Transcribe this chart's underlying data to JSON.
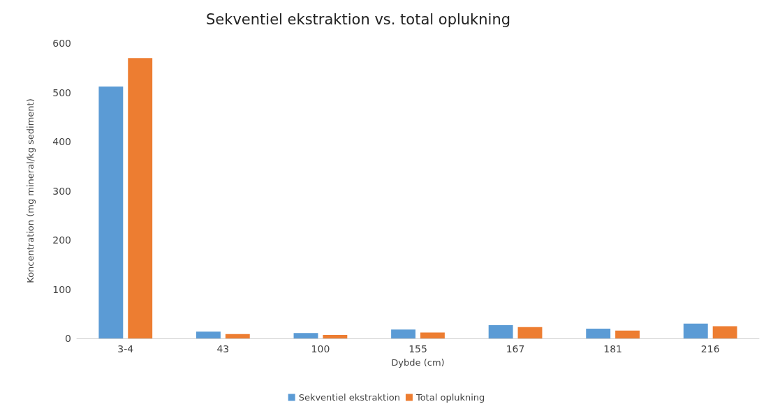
{
  "chart_data": {
    "type": "bar",
    "title": "Sekventiel ekstraktion vs. total oplukning",
    "xlabel": "Dybde (cm)",
    "ylabel": "Koncentration (mg mineral/kg sediment)",
    "categories": [
      "3-4",
      "43",
      "100",
      "155",
      "167",
      "181",
      "216"
    ],
    "series": [
      {
        "name": "Sekventiel ekstraktion",
        "color": "#5b9bd5",
        "values": [
          512,
          14,
          11,
          18,
          27,
          20,
          30
        ]
      },
      {
        "name": "Total oplukning",
        "color": "#ed7d31",
        "values": [
          570,
          9,
          7,
          12,
          23,
          16,
          25
        ]
      }
    ],
    "ylim": [
      0,
      600
    ],
    "yticks": [
      0,
      100,
      200,
      300,
      400,
      500,
      600
    ],
    "grid": false,
    "legend": "bottom"
  }
}
